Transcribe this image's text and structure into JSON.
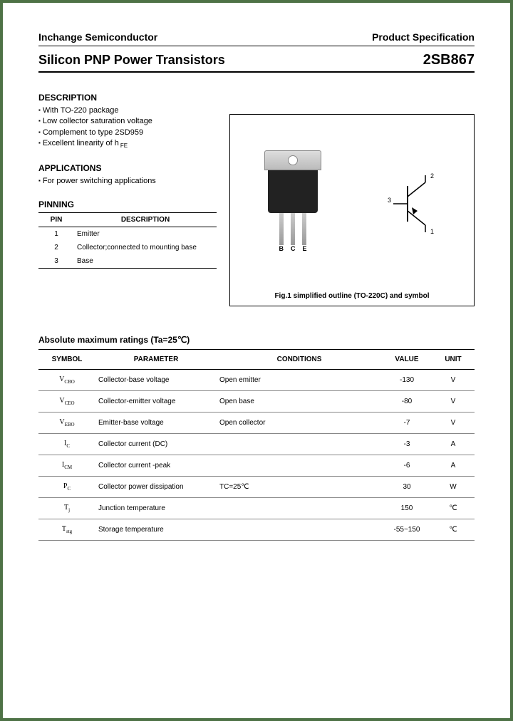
{
  "header": {
    "company": "Inchange Semiconductor",
    "doctype": "Product Specification",
    "title": "Silicon PNP Power Transistors",
    "partno": "2SB867"
  },
  "description": {
    "heading": "DESCRIPTION",
    "items": [
      "With TO-220 package",
      "Low collector saturation voltage",
      "Complement to type 2SD959",
      "Excellent linearity of h"
    ],
    "hfe_sub": "FE"
  },
  "applications": {
    "heading": "APPLICATIONS",
    "items": [
      "For power switching applications"
    ]
  },
  "pinning": {
    "heading": "PINNING",
    "cols": [
      "PIN",
      "DESCRIPTION"
    ],
    "rows": [
      {
        "pin": "1",
        "desc": "Emitter"
      },
      {
        "pin": "2",
        "desc": "Collector;connected to mounting base"
      },
      {
        "pin": "3",
        "desc": "Base"
      }
    ]
  },
  "figure": {
    "caption": "Fig.1 simplified outline (TO-220C) and symbol",
    "leg_labels": [
      "B",
      "C",
      "E"
    ],
    "symbol_pins": {
      "p1": "1",
      "p2": "2",
      "p3": "3"
    }
  },
  "ratings": {
    "title": "Absolute maximum ratings (Ta=25℃)",
    "cols": [
      "SYMBOL",
      "PARAMETER",
      "CONDITIONS",
      "VALUE",
      "UNIT"
    ],
    "rows": [
      {
        "sym": "V",
        "sub": "CBO",
        "param": "Collector-base voltage",
        "cond": "Open emitter",
        "val": "-130",
        "unit": "V"
      },
      {
        "sym": "V",
        "sub": "CEO",
        "param": "Collector-emitter voltage",
        "cond": "Open base",
        "val": "-80",
        "unit": "V"
      },
      {
        "sym": "V",
        "sub": "EBO",
        "param": "Emitter-base voltage",
        "cond": "Open collector",
        "val": "-7",
        "unit": "V"
      },
      {
        "sym": "I",
        "sub": "C",
        "param": "Collector current (DC)",
        "cond": "",
        "val": "-3",
        "unit": "A"
      },
      {
        "sym": "I",
        "sub": "CM",
        "param": "Collector current -peak",
        "cond": "",
        "val": "-6",
        "unit": "A"
      },
      {
        "sym": "P",
        "sub": "C",
        "param": "Collector power dissipation",
        "cond": "TC=25℃",
        "val": "30",
        "unit": "W"
      },
      {
        "sym": "T",
        "sub": "j",
        "param": "Junction temperature",
        "cond": "",
        "val": "150",
        "unit": "℃"
      },
      {
        "sym": "T",
        "sub": "stg",
        "param": "Storage temperature",
        "cond": "",
        "val": "-55~150",
        "unit": "℃"
      }
    ]
  }
}
